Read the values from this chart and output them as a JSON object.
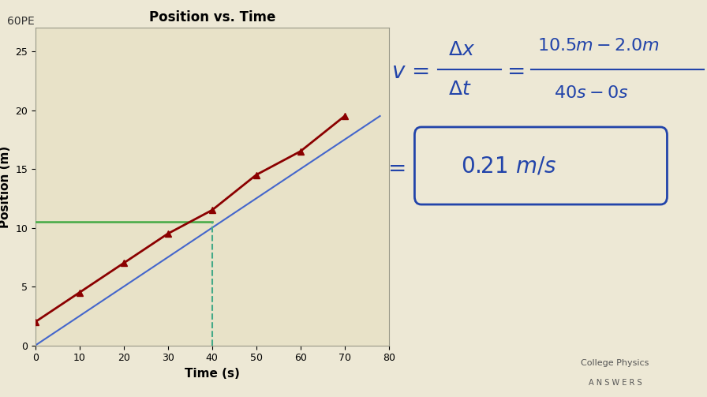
{
  "bg_color": "#ede8d5",
  "panel_bg": "#e8e2c8",
  "title_text": "60PE",
  "graph_title": "Position vs. Time",
  "xlabel": "Time (s)",
  "ylabel": "Position (m)",
  "xlim": [
    0,
    80
  ],
  "ylim": [
    0,
    27
  ],
  "xticks": [
    0,
    10,
    20,
    30,
    40,
    50,
    60,
    70,
    80
  ],
  "yticks": [
    0,
    5,
    10,
    15,
    20,
    25
  ],
  "data_x": [
    0,
    10,
    20,
    30,
    40,
    50,
    60,
    70
  ],
  "data_y": [
    2.0,
    4.5,
    7.0,
    9.5,
    11.5,
    14.5,
    16.5,
    19.5
  ],
  "data_color": "#8b0000",
  "blue_line_x": [
    0,
    78
  ],
  "blue_line_y": [
    0,
    19.5
  ],
  "blue_line_color": "#4466cc",
  "green_line_x": [
    0,
    40
  ],
  "green_line_y": [
    10.5,
    10.5
  ],
  "green_line_color": "#44aa44",
  "dashed_x": 40,
  "dashed_y_max": 10.5,
  "dashed_color": "#44aa88",
  "text_color_blue": "#2244aa",
  "font_size_label": 11,
  "font_size_title": 12,
  "font_size_formula": 18
}
